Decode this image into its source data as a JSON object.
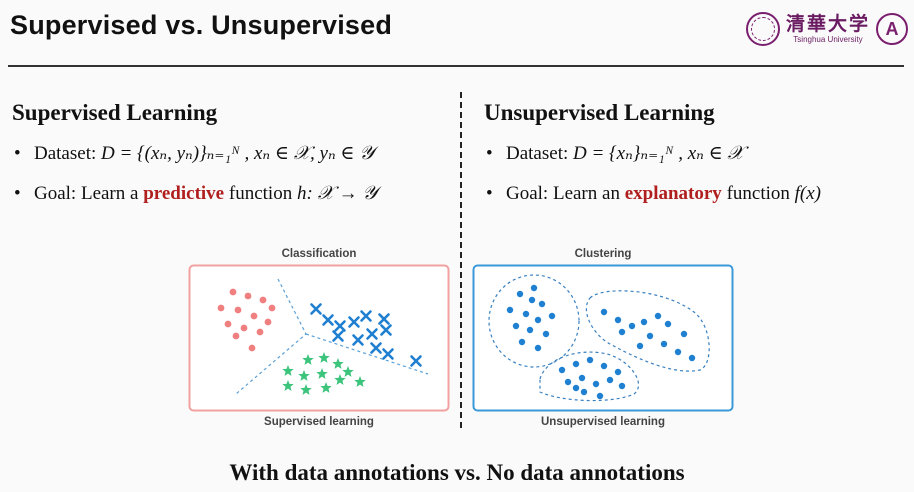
{
  "title": "Supervised vs. Unsupervised",
  "logos": {
    "university_cn": "清華大学",
    "university_en": "Tsinghua University",
    "lab_letter": "A"
  },
  "left": {
    "heading": "Supervised Learning",
    "dataset_prefix": "Dataset: ",
    "dataset_math": "D = {(xₙ, yₙ)}ₙ₌₁ᴺ , xₙ ∈ 𝒳, yₙ ∈ 𝒴",
    "goal_prefix": "Goal: Learn a ",
    "goal_highlight": "predictive",
    "goal_suffix": " function ",
    "goal_math": "h:  𝒳 → 𝒴",
    "figure_title": "Classification",
    "figure_caption": "Supervised learning"
  },
  "right": {
    "heading": "Unsupervised Learning",
    "dataset_prefix": "Dataset: ",
    "dataset_math": "D = {xₙ}ₙ₌₁ᴺ , xₙ ∈ 𝒳",
    "goal_prefix": "Goal: Learn an ",
    "goal_highlight": "explanatory",
    "goal_suffix": " function ",
    "goal_math": "f(x)",
    "figure_title": "Clustering",
    "figure_caption": "Unsupervised learning"
  },
  "footer": "With data annotations vs. No data annotations",
  "colors": {
    "highlight": "#b01e1e",
    "classification_border": "#f2a0a0",
    "clustering_border": "#3a9ad9",
    "class_dots": "#f08080",
    "class_crosses": "#1f7fd0",
    "class_stars": "#3cc47c",
    "cluster_points": "#1f7fd0"
  }
}
